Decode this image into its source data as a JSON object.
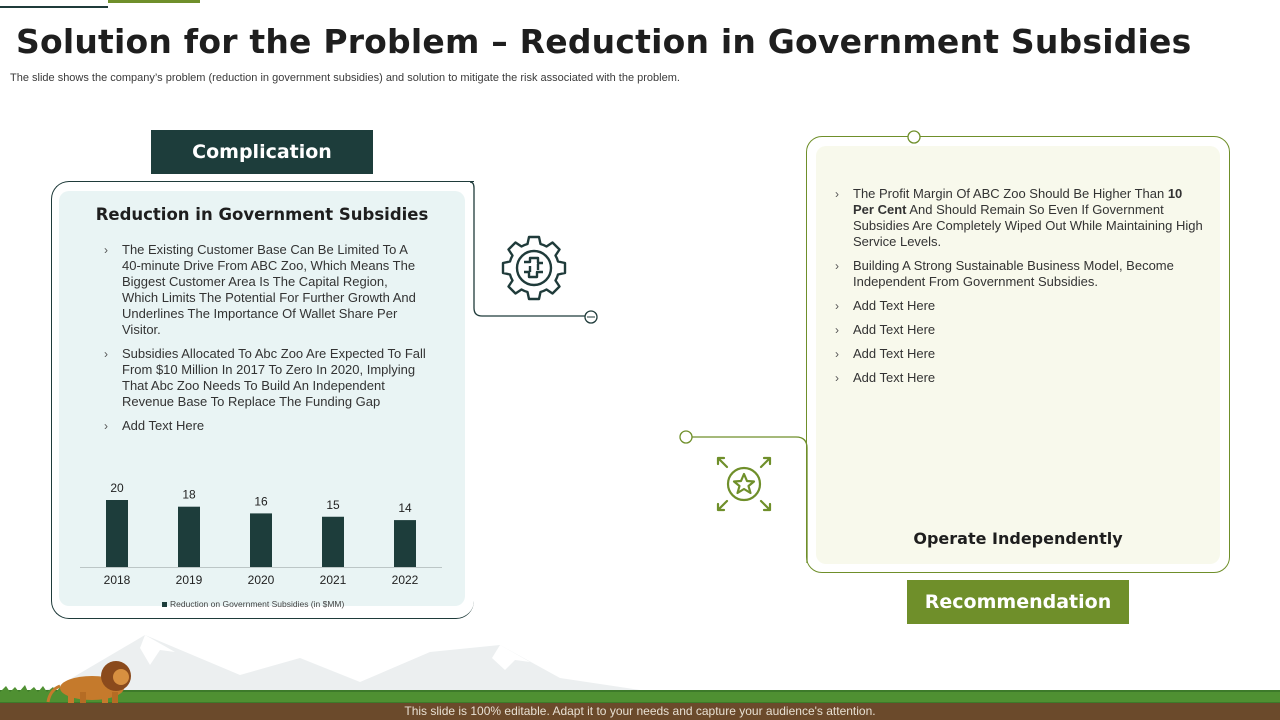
{
  "header": {
    "title": "Solution for the Problem – Reduction in Government Subsidies",
    "subtitle": "The slide shows the company’s problem (reduction in government subsidies) and solution to mitigate the risk associated with the problem."
  },
  "complication": {
    "tag": "Complication",
    "heading": "Reduction in Government Subsidies",
    "bullets": [
      "The Existing Customer Base Can Be Limited To A 40-minute Drive From ABC Zoo, Which Means The Biggest Customer Area Is The Capital Region, Which Limits The Potential For Further Growth And Underlines The Importance Of Wallet Share Per Visitor.",
      "Subsidies Allocated To Abc Zoo Are Expected To Fall From $10 Million In 2017 To Zero In 2020, Implying That Abc Zoo Needs To Build An Independent Revenue Base To Replace The Funding Gap",
      "Add Text Here"
    ],
    "icon": "gear-puzzle-icon"
  },
  "recommendation": {
    "tag": "Recommendation",
    "heading": "Operate Independently",
    "bullet1_before": "The Profit Margin Of ABC Zoo Should Be Higher Than ",
    "bullet1_bold": "10 Per Cent",
    "bullet1_after": " And Should Remain So Even If Government Subsidies Are Completely Wiped Out While Maintaining High Service Levels.",
    "bullets": [
      "Building A Strong Sustainable Business Model, Become Independent From Government Subsidies.",
      "Add Text Here",
      "Add Text Here",
      "Add Text Here",
      "Add Text Here"
    ],
    "icon": "star-arrows-icon"
  },
  "footer": {
    "text": "This slide is 100% editable. Adapt it to your needs and capture your audience's attention."
  },
  "colors": {
    "dark_teal": "#1d3d3b",
    "olive_green": "#6f8f2a",
    "left_card_bg": "#e9f4f4",
    "right_card_bg": "#f8f9ec"
  },
  "chart_data": {
    "type": "bar",
    "categories": [
      "2018",
      "2019",
      "2020",
      "2021",
      "2022"
    ],
    "values": [
      20,
      18,
      16,
      15,
      14
    ],
    "series": [
      {
        "name": "Reduction on Government Subsidies (in $MM)",
        "values": [
          20,
          18,
          16,
          15,
          14
        ]
      }
    ],
    "legend_label": "Reduction on Government Subsidies (in $MM)",
    "ylim": [
      0,
      20
    ],
    "grid": false,
    "legend_position": "bottom"
  }
}
